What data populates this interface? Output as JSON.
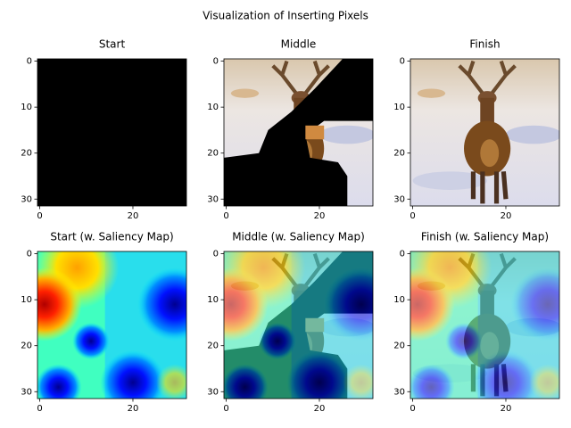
{
  "title": "Visualization of Inserting Pixels",
  "chart_data": [
    {
      "type": "image",
      "title": "Start",
      "xlim": [
        -0.5,
        31.5
      ],
      "ylim": [
        31.5,
        -0.5
      ],
      "xticks": [
        0,
        20
      ],
      "yticks": [
        0,
        10,
        20,
        30
      ]
    },
    {
      "type": "image",
      "title": "Middle",
      "xlim": [
        -0.5,
        31.5
      ],
      "ylim": [
        31.5,
        -0.5
      ],
      "xticks": [
        0,
        20
      ],
      "yticks": [
        0,
        10,
        20,
        30
      ]
    },
    {
      "type": "image",
      "title": "Finish",
      "xlim": [
        -0.5,
        31.5
      ],
      "ylim": [
        31.5,
        -0.5
      ],
      "xticks": [
        0,
        20
      ],
      "yticks": [
        0,
        10,
        20,
        30
      ]
    },
    {
      "type": "image",
      "title": "Start (w. Saliency Map)",
      "xlim": [
        -0.5,
        31.5
      ],
      "ylim": [
        31.5,
        -0.5
      ],
      "xticks": [
        0,
        20
      ],
      "yticks": [
        0,
        10,
        20,
        30
      ]
    },
    {
      "type": "image",
      "title": "Middle (w. Saliency Map)",
      "xlim": [
        -0.5,
        31.5
      ],
      "ylim": [
        31.5,
        -0.5
      ],
      "xticks": [
        0,
        20
      ],
      "yticks": [
        0,
        10,
        20,
        30
      ]
    },
    {
      "type": "image",
      "title": "Finish (w. Saliency Map)",
      "xlim": [
        -0.5,
        31.5
      ],
      "ylim": [
        31.5,
        -0.5
      ],
      "xticks": [
        0,
        20
      ],
      "yticks": [
        0,
        10,
        20,
        30
      ]
    }
  ]
}
